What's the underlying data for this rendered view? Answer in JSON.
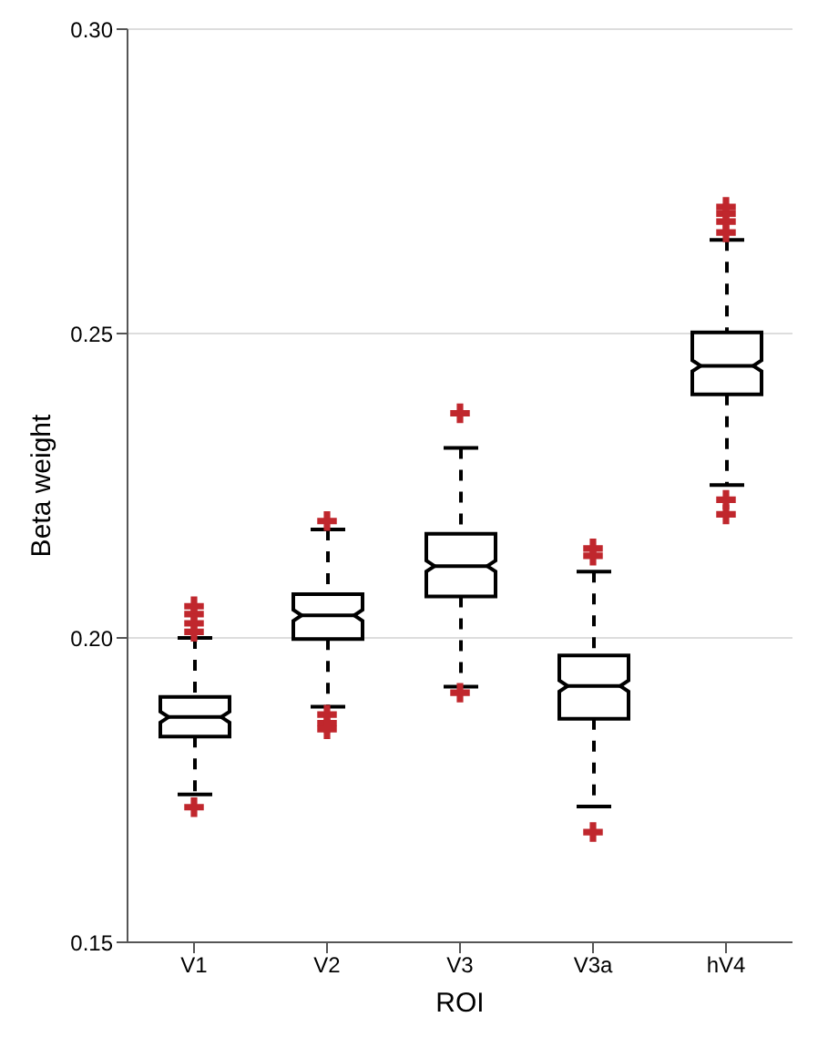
{
  "chart_data": {
    "type": "box",
    "xlabel": "ROI",
    "ylabel": "Beta weight",
    "categories": [
      "V1",
      "V2",
      "V3",
      "V3a",
      "hV4"
    ],
    "series": [
      {
        "type": "box",
        "color": "#000000",
        "boxes": [
          {
            "low": 0.1743,
            "q1": 0.1838,
            "median": 0.187,
            "q3": 0.1903,
            "high": 0.2
          },
          {
            "low": 0.1887,
            "q1": 0.1998,
            "median": 0.2037,
            "q3": 0.2072,
            "high": 0.2178
          },
          {
            "low": 0.192,
            "q1": 0.2068,
            "median": 0.2118,
            "q3": 0.2171,
            "high": 0.2312
          },
          {
            "low": 0.1723,
            "q1": 0.1867,
            "median": 0.1921,
            "q3": 0.1971,
            "high": 0.2109
          },
          {
            "low": 0.2251,
            "q1": 0.24,
            "median": 0.2447,
            "q3": 0.2502,
            "high": 0.2654
          }
        ]
      },
      {
        "type": "scatter",
        "color": "#c0272d",
        "marker": "cross",
        "x": [
          "V1",
          "V1",
          "V1",
          "V1",
          "V1",
          "V1",
          "V2",
          "V2",
          "V2",
          "V2",
          "V2",
          "V3",
          "V3",
          "V3a",
          "V3a",
          "V3a",
          "hV4",
          "hV4",
          "hV4",
          "hV4",
          "hV4",
          "hV4"
        ],
        "values": [
          0.2052,
          0.2039,
          0.2024,
          0.201,
          null,
          0.1722,
          null,
          0.2192,
          0.1874,
          0.186,
          0.185,
          0.2369,
          0.191,
          0.2147,
          0.2135,
          0.1681,
          0.2708,
          0.2697,
          0.2684,
          0.2666,
          0.2227,
          0.2203
        ]
      }
    ],
    "ylim": [
      0.15,
      0.3
    ],
    "yticks": [
      0.15,
      {
        "value": 0.2,
        "label": "0.20"
      },
      0.25,
      {
        "value": 0.3,
        "label": "0.30"
      }
    ],
    "grid": "y"
  }
}
